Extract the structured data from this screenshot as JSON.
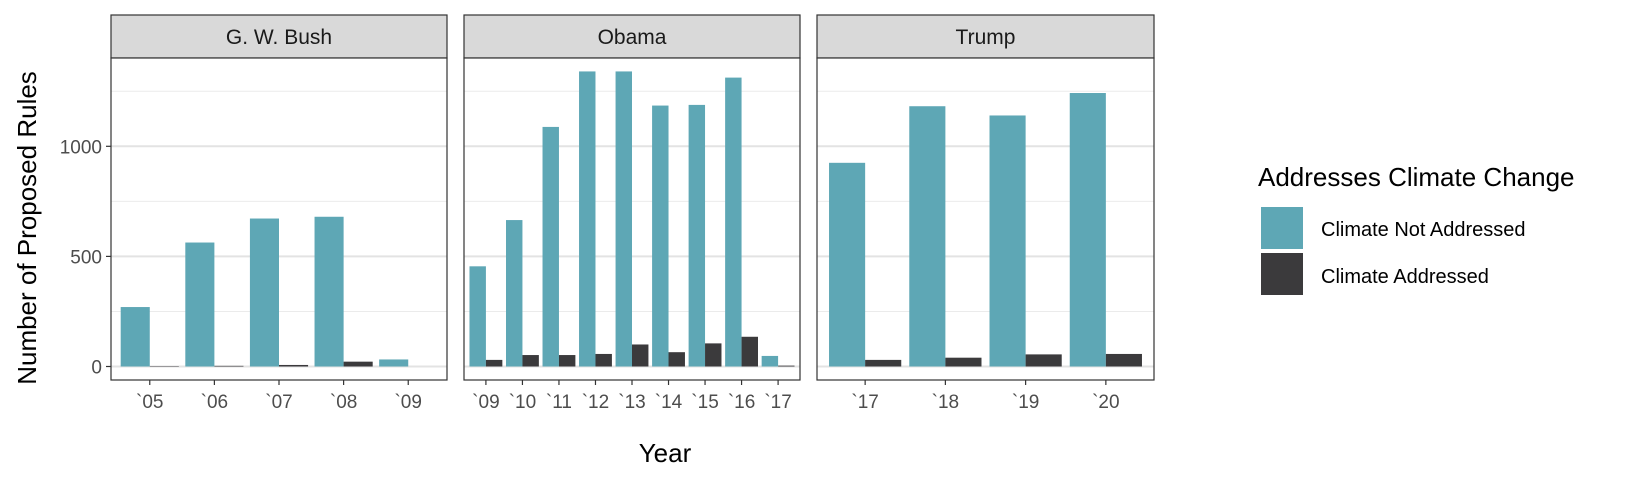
{
  "chart_data": {
    "type": "bar",
    "layout": "faceted-grouped",
    "xlabel": "Year",
    "ylabel": "Number of Proposed Rules",
    "ylim": [
      0,
      1450
    ],
    "yticks": [
      0,
      500,
      1000
    ],
    "grid": true,
    "legend": {
      "title": "Addresses Climate Change",
      "position": "right"
    },
    "series": [
      {
        "name": "Climate Not Addressed",
        "color": "#5ea7b5"
      },
      {
        "name": "Climate Addressed",
        "color": "#3b3a3c"
      }
    ],
    "facets": [
      {
        "title": "G. W. Bush",
        "categories": [
          "`05",
          "`06",
          "`07",
          "`08",
          "`09"
        ],
        "values": [
          [
            270,
            563,
            672,
            680,
            32
          ],
          [
            2,
            3,
            7,
            22,
            0
          ]
        ]
      },
      {
        "title": "Obama",
        "categories": [
          "`09",
          "`10",
          "`11",
          "`12",
          "`13",
          "`14",
          "`15",
          "`16",
          "`17"
        ],
        "values": [
          [
            455,
            665,
            1088,
            1340,
            1340,
            1185,
            1188,
            1312,
            48
          ],
          [
            30,
            52,
            52,
            57,
            100,
            65,
            105,
            135,
            4
          ]
        ]
      },
      {
        "title": "Trump",
        "categories": [
          "`17",
          "`18",
          "`19",
          "`20"
        ],
        "values": [
          [
            925,
            1182,
            1140,
            1242
          ],
          [
            30,
            40,
            55,
            57
          ]
        ]
      }
    ]
  }
}
